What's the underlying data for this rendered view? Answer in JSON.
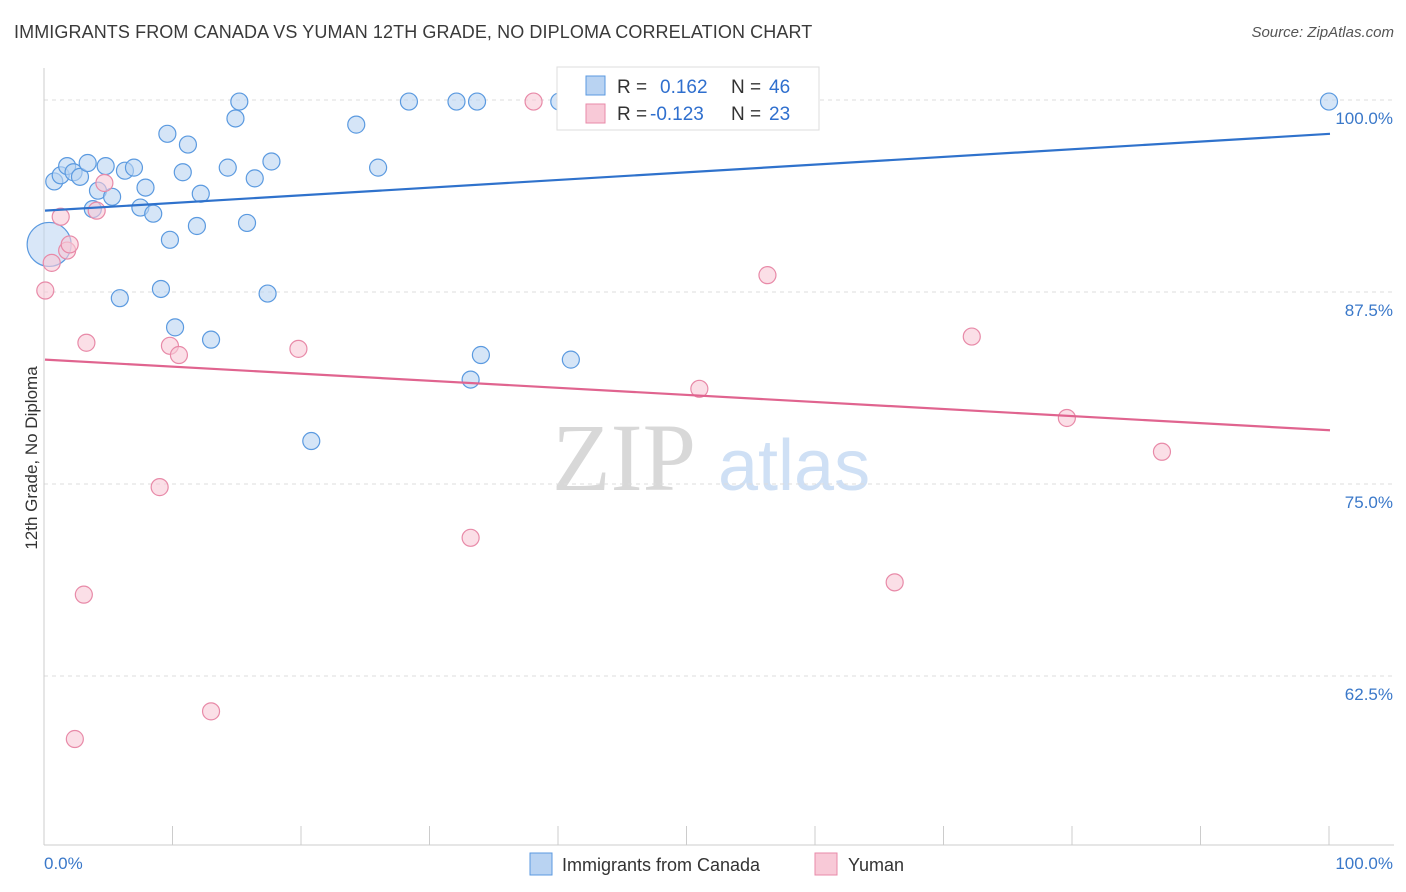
{
  "title": "IMMIGRANTS FROM CANADA VS YUMAN 12TH GRADE, NO DIPLOMA CORRELATION CHART",
  "source": "Source: ZipAtlas.com",
  "watermark": {
    "zip": "ZIP",
    "atlas": "atlas"
  },
  "colors": {
    "blue": "#5b9ae0",
    "blue_fill": "#b9d3f2",
    "blue_line": "#2f72cc",
    "pink": "#e88aa8",
    "pink_fill": "#f8c9d7",
    "pink_line": "#e0648f",
    "axis_text": "#3a78c9",
    "grid": "#dddddd"
  },
  "legend": {
    "r_label": "R =",
    "n_label": "N =",
    "rows": [
      {
        "r": "0.162",
        "n": "46"
      },
      {
        "r": "-0.123",
        "n": "23"
      }
    ]
  },
  "chart_data": {
    "type": "scatter",
    "title": "IMMIGRANTS FROM CANADA VS YUMAN 12TH GRADE, NO DIPLOMA CORRELATION CHART",
    "xlabel": "",
    "ylabel": "12th Grade, No Diploma",
    "xlim": [
      0,
      100
    ],
    "ylim": [
      51.5,
      101.5
    ],
    "x_tick_labels": [
      "0.0%",
      "100.0%"
    ],
    "y_ticks": [
      100.0,
      87.5,
      75.0,
      62.5
    ],
    "y_tick_labels": [
      "100.0%",
      "87.5%",
      "75.0%",
      "62.5%"
    ],
    "grid": true,
    "legend_position": "top-center",
    "series": [
      {
        "name": "Immigrants from Canada",
        "color": "blue",
        "trend": {
          "x": [
            0,
            100
          ],
          "y": [
            92.8,
            97.8
          ]
        },
        "points": [
          {
            "x": 0.4,
            "y": 90.6,
            "big": true
          },
          {
            "x": 0.8,
            "y": 94.7
          },
          {
            "x": 1.3,
            "y": 95.1
          },
          {
            "x": 1.8,
            "y": 95.7
          },
          {
            "x": 2.3,
            "y": 95.3
          },
          {
            "x": 2.8,
            "y": 95.0
          },
          {
            "x": 3.4,
            "y": 95.9
          },
          {
            "x": 3.8,
            "y": 92.9
          },
          {
            "x": 4.2,
            "y": 94.1
          },
          {
            "x": 4.8,
            "y": 95.7
          },
          {
            "x": 5.3,
            "y": 93.7
          },
          {
            "x": 5.9,
            "y": 87.1
          },
          {
            "x": 6.3,
            "y": 95.4
          },
          {
            "x": 7.0,
            "y": 95.6
          },
          {
            "x": 7.5,
            "y": 93.0
          },
          {
            "x": 7.9,
            "y": 94.3
          },
          {
            "x": 8.5,
            "y": 92.6
          },
          {
            "x": 9.1,
            "y": 87.7
          },
          {
            "x": 9.6,
            "y": 97.8
          },
          {
            "x": 9.8,
            "y": 90.9
          },
          {
            "x": 10.2,
            "y": 85.2
          },
          {
            "x": 10.8,
            "y": 95.3
          },
          {
            "x": 11.2,
            "y": 97.1
          },
          {
            "x": 11.9,
            "y": 91.8
          },
          {
            "x": 12.2,
            "y": 93.9
          },
          {
            "x": 13.0,
            "y": 84.4
          },
          {
            "x": 14.3,
            "y": 95.6
          },
          {
            "x": 14.9,
            "y": 98.8
          },
          {
            "x": 15.2,
            "y": 99.9
          },
          {
            "x": 15.8,
            "y": 92.0
          },
          {
            "x": 16.4,
            "y": 94.9
          },
          {
            "x": 17.4,
            "y": 87.4
          },
          {
            "x": 17.7,
            "y": 96.0
          },
          {
            "x": 20.8,
            "y": 77.8
          },
          {
            "x": 24.3,
            "y": 98.4
          },
          {
            "x": 26.0,
            "y": 95.6
          },
          {
            "x": 28.4,
            "y": 99.9
          },
          {
            "x": 32.1,
            "y": 99.9
          },
          {
            "x": 33.2,
            "y": 81.8
          },
          {
            "x": 33.7,
            "y": 99.9
          },
          {
            "x": 34.0,
            "y": 83.4
          },
          {
            "x": 40.1,
            "y": 99.9
          },
          {
            "x": 41.0,
            "y": 83.1
          },
          {
            "x": 47.1,
            "y": 99.9
          },
          {
            "x": 49.7,
            "y": 99.9
          },
          {
            "x": 100.0,
            "y": 99.9
          }
        ]
      },
      {
        "name": "Yuman",
        "color": "pink",
        "trend": {
          "x": [
            0,
            100
          ],
          "y": [
            83.1,
            78.5
          ]
        },
        "points": [
          {
            "x": 0.1,
            "y": 87.6
          },
          {
            "x": 0.6,
            "y": 89.4
          },
          {
            "x": 1.3,
            "y": 92.4
          },
          {
            "x": 1.8,
            "y": 90.2
          },
          {
            "x": 2.0,
            "y": 90.6
          },
          {
            "x": 2.4,
            "y": 58.4
          },
          {
            "x": 3.1,
            "y": 67.8
          },
          {
            "x": 3.3,
            "y": 84.2
          },
          {
            "x": 4.1,
            "y": 92.8
          },
          {
            "x": 4.7,
            "y": 94.6
          },
          {
            "x": 9.0,
            "y": 74.8
          },
          {
            "x": 9.8,
            "y": 84.0
          },
          {
            "x": 10.5,
            "y": 83.4
          },
          {
            "x": 13.0,
            "y": 60.2
          },
          {
            "x": 19.8,
            "y": 83.8
          },
          {
            "x": 33.2,
            "y": 71.5
          },
          {
            "x": 38.1,
            "y": 99.9
          },
          {
            "x": 51.0,
            "y": 81.2
          },
          {
            "x": 56.3,
            "y": 88.6
          },
          {
            "x": 66.2,
            "y": 68.6
          },
          {
            "x": 72.2,
            "y": 84.6
          },
          {
            "x": 79.6,
            "y": 79.3
          },
          {
            "x": 87.0,
            "y": 77.1
          }
        ]
      }
    ]
  }
}
